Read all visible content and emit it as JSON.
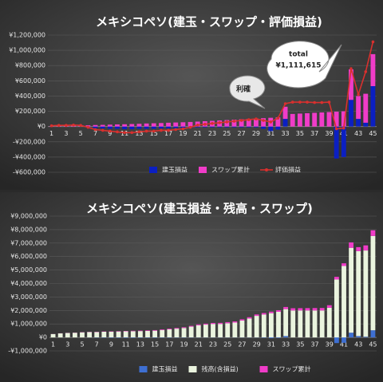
{
  "chart_data": [
    {
      "type": "bar",
      "stacked": true,
      "title": "メキシコペソ(建玉・スワップ・評価損益)",
      "categories": [
        "1",
        null,
        "3",
        null,
        "5",
        null,
        "7",
        null,
        "9",
        null,
        "11",
        null,
        "13",
        null,
        "15",
        null,
        "17",
        null,
        "19",
        null,
        "21",
        null,
        "23",
        null,
        "25",
        null,
        "27",
        null,
        "29",
        null,
        "31",
        null,
        "33",
        null,
        "35",
        null,
        "37",
        null,
        "39",
        null,
        "41",
        null,
        "43",
        null,
        "45"
      ],
      "ylim": [
        -600000,
        1200000
      ],
      "yticks": [
        {
          "value": -600000,
          "label": "-¥600,000"
        },
        {
          "value": -400000,
          "label": "-¥400,000"
        },
        {
          "value": -200000,
          "label": "-¥200,000"
        },
        {
          "value": 0,
          "label": "¥0"
        },
        {
          "value": 200000,
          "label": "¥200,000"
        },
        {
          "value": 400000,
          "label": "¥400,000"
        },
        {
          "value": 600000,
          "label": "¥600,000"
        },
        {
          "value": 800000,
          "label": "¥800,000"
        },
        {
          "value": 1000000,
          "label": "¥1,000,000"
        },
        {
          "value": 1200000,
          "label": "¥1,200,000"
        }
      ],
      "grid": true,
      "annotations": [
        "利確",
        "total",
        "¥1,111,615"
      ],
      "series": [
        {
          "name": "建玉損益",
          "type": "bar",
          "color": "#0b1fc2",
          "values": [
            0,
            0,
            0,
            0,
            0,
            -5000,
            -20000,
            -25000,
            -30000,
            -30000,
            -35000,
            -35000,
            -30000,
            -30000,
            -30000,
            -25000,
            -25000,
            -20000,
            -20000,
            -15000,
            -10000,
            -10000,
            -10000,
            -10000,
            -10000,
            -10000,
            -10000,
            -10000,
            -10000,
            -30000,
            -60000,
            -40000,
            100000,
            0,
            0,
            0,
            0,
            0,
            0,
            -420000,
            -400000,
            350000,
            100000,
            50000,
            530000
          ]
        },
        {
          "name": "スワップ累計",
          "type": "bar",
          "color": "#f03cc8",
          "values": [
            5000,
            8000,
            10000,
            12000,
            14000,
            16000,
            20000,
            22000,
            25000,
            28000,
            30000,
            33000,
            36000,
            40000,
            43000,
            46000,
            50000,
            53000,
            56000,
            60000,
            65000,
            70000,
            75000,
            80000,
            85000,
            90000,
            95000,
            100000,
            105000,
            110000,
            115000,
            120000,
            160000,
            165000,
            170000,
            175000,
            180000,
            185000,
            190000,
            195000,
            200000,
            400000,
            300000,
            380000,
            420000
          ]
        },
        {
          "name": "評価損益",
          "type": "line",
          "color": "#d8302e",
          "values": [
            10000,
            15000,
            15000,
            20000,
            15000,
            -10000,
            -40000,
            -50000,
            -60000,
            -70000,
            -80000,
            -80000,
            -70000,
            -60000,
            -60000,
            -50000,
            -50000,
            -40000,
            -30000,
            -10000,
            20000,
            30000,
            40000,
            50000,
            60000,
            70000,
            80000,
            90000,
            100000,
            80000,
            60000,
            110000,
            300000,
            320000,
            320000,
            320000,
            315000,
            315000,
            320000,
            -30000,
            -20000,
            760000,
            420000,
            720000,
            1111615
          ]
        }
      ]
    },
    {
      "type": "bar",
      "stacked": true,
      "title": "メキシコペソ(建玉損益・残高・スワップ)",
      "categories": [
        "1",
        null,
        "3",
        null,
        "5",
        null,
        "7",
        null,
        "9",
        null,
        "11",
        null,
        "13",
        null,
        "15",
        null,
        "17",
        null,
        "19",
        null,
        "21",
        null,
        "23",
        null,
        "25",
        null,
        "27",
        null,
        "29",
        null,
        "31",
        null,
        "33",
        null,
        "35",
        null,
        "37",
        null,
        "39",
        null,
        "41",
        null,
        "43",
        null,
        "45"
      ],
      "ylim": [
        -1000000,
        9000000
      ],
      "yticks": [
        {
          "value": -1000000,
          "label": "-¥1,000,000"
        },
        {
          "value": 0,
          "label": "¥0"
        },
        {
          "value": 1000000,
          "label": "¥1,000,000"
        },
        {
          "value": 2000000,
          "label": "¥2,000,000"
        },
        {
          "value": 3000000,
          "label": "¥3,000,000"
        },
        {
          "value": 4000000,
          "label": "¥4,000,000"
        },
        {
          "value": 5000000,
          "label": "¥5,000,000"
        },
        {
          "value": 6000000,
          "label": "¥6,000,000"
        },
        {
          "value": 7000000,
          "label": "¥7,000,000"
        },
        {
          "value": 8000000,
          "label": "¥8,000,000"
        },
        {
          "value": 9000000,
          "label": "¥9,000,000"
        }
      ],
      "grid": true,
      "series": [
        {
          "name": "建玉損益",
          "type": "bar",
          "color": "#3e6fd2",
          "values": [
            0,
            0,
            0,
            0,
            0,
            -5000,
            -20000,
            -25000,
            -30000,
            -30000,
            -35000,
            -35000,
            -30000,
            -30000,
            -30000,
            -25000,
            -25000,
            -20000,
            -20000,
            -15000,
            -10000,
            -10000,
            -10000,
            -10000,
            -10000,
            -10000,
            -10000,
            -10000,
            -10000,
            -30000,
            -60000,
            -40000,
            100000,
            0,
            0,
            0,
            0,
            0,
            0,
            -420000,
            -400000,
            350000,
            100000,
            50000,
            530000
          ]
        },
        {
          "name": "残高(含損益)",
          "type": "bar",
          "color": "#eaf4de",
          "values": [
            250000,
            300000,
            330000,
            350000,
            380000,
            400000,
            400000,
            420000,
            430000,
            440000,
            450000,
            460000,
            470000,
            480000,
            500000,
            550000,
            600000,
            650000,
            700000,
            800000,
            900000,
            950000,
            1000000,
            1000000,
            1050000,
            1100000,
            1250000,
            1400000,
            1600000,
            1700000,
            1800000,
            1900000,
            2000000,
            2000000,
            2000000,
            2000000,
            2000000,
            2000000,
            2200000,
            4300000,
            5300000,
            6300000,
            6300000,
            6400000,
            7000000
          ]
        },
        {
          "name": "スワップ累計",
          "type": "bar",
          "color": "#f03cc8",
          "values": [
            5000,
            8000,
            10000,
            12000,
            14000,
            16000,
            20000,
            22000,
            25000,
            28000,
            30000,
            33000,
            36000,
            40000,
            43000,
            46000,
            50000,
            53000,
            56000,
            60000,
            65000,
            70000,
            75000,
            80000,
            85000,
            90000,
            95000,
            100000,
            105000,
            110000,
            115000,
            120000,
            160000,
            165000,
            170000,
            175000,
            180000,
            185000,
            190000,
            195000,
            200000,
            400000,
            300000,
            380000,
            420000
          ]
        }
      ]
    }
  ]
}
